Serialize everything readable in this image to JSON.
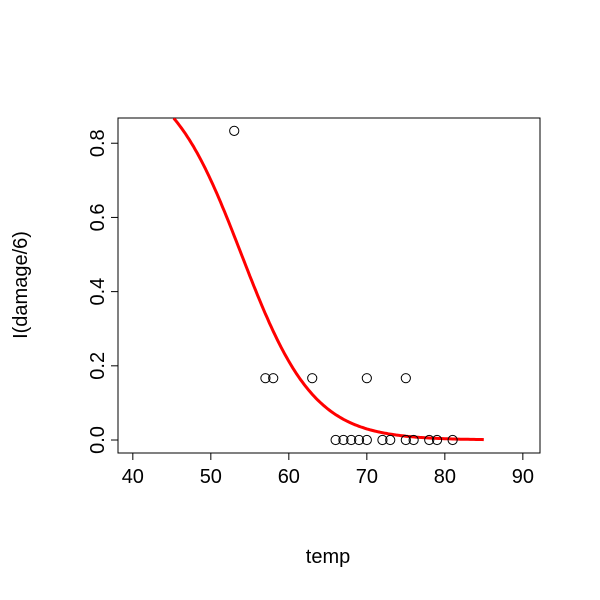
{
  "chart_data": {
    "type": "scatter",
    "title": "",
    "xlabel": "temp",
    "ylabel": "I(damage/6)",
    "xlim": [
      38.1,
      92.2
    ],
    "ylim": [
      -0.035,
      0.868
    ],
    "xticks": [
      40,
      50,
      60,
      70,
      80,
      90
    ],
    "xtick_labels": [
      "40",
      "50",
      "60",
      "70",
      "80",
      "90"
    ],
    "yticks": [
      0,
      0.2,
      0.4,
      0.6,
      0.8
    ],
    "ytick_labels": [
      "0.0",
      "0.2",
      "0.4",
      "0.6",
      "0.8"
    ],
    "points": [
      [
        53,
        0.8333
      ],
      [
        57,
        0.1667
      ],
      [
        58,
        0.1667
      ],
      [
        63,
        0.1667
      ],
      [
        70,
        0.1667
      ],
      [
        75,
        0.1667
      ],
      [
        66,
        0
      ],
      [
        67,
        0
      ],
      [
        68,
        0
      ],
      [
        69,
        0
      ],
      [
        70,
        0
      ],
      [
        72,
        0
      ],
      [
        73,
        0
      ],
      [
        75,
        0
      ],
      [
        76,
        0
      ],
      [
        78,
        0
      ],
      [
        79,
        0
      ],
      [
        81,
        0
      ]
    ],
    "fit_curve": {
      "type": "logistic",
      "intercept": 11.66,
      "slope": -0.2162,
      "x_range": [
        45,
        85
      ],
      "color": "#ff0000"
    }
  }
}
